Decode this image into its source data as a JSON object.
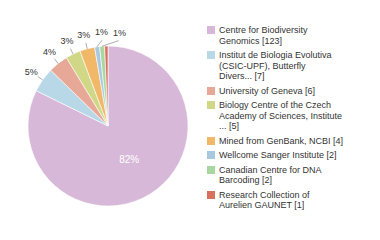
{
  "chart_data": {
    "type": "pie",
    "categories": [
      "Centre for Biodiversity\nGenomics [123]",
      "Institut de Biologia Evolutiva\n(CSIC-UPF), Butterfly\nDivers... [7]",
      "University of Geneva [6]",
      "Biology Centre of the Czech\nAcademy of Sciences, Institute\n... [5]",
      "Mined from GenBank, NCBI [4]",
      "Wellcome Sanger Institute [2]",
      "Canadian Centre for DNA\nBarcoding [2]",
      "Research Collection of\nAurelien GAUNET [1]"
    ],
    "values": [
      82,
      5,
      4,
      3,
      3,
      1,
      1,
      0.67
    ],
    "value_labels": [
      "82%",
      "5%",
      "4%",
      "3%",
      "3%",
      "1%",
      "1%",
      null
    ],
    "colors": [
      "#d8b8d8",
      "#b8d8e8",
      "#e8a898",
      "#d0d888",
      "#f0b868",
      "#a8c8e0",
      "#a8d8a0",
      "#d87060"
    ],
    "data_labels": true,
    "legend": "right"
  }
}
